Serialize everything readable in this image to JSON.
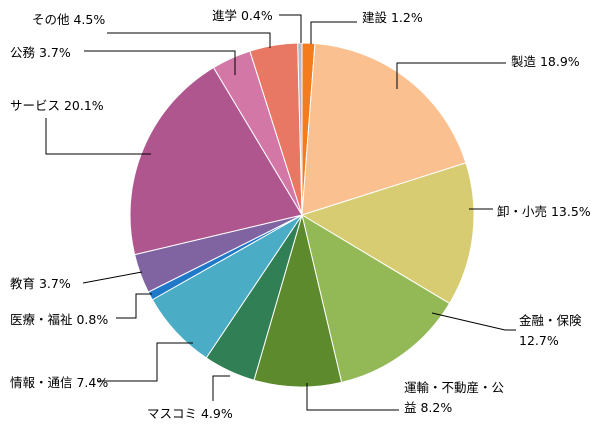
{
  "chart_data": {
    "type": "pie",
    "title": "",
    "start": "top",
    "direction": "clockwise",
    "categories": [
      "建設",
      "製造",
      "卸・小売",
      "金融・保険",
      "運輸・不動産・公益",
      "マスコミ",
      "情報・通信",
      "医療・福祉",
      "教育",
      "サービス",
      "公務",
      "その他",
      "進学"
    ],
    "values": [
      1.2,
      18.9,
      13.5,
      12.7,
      8.2,
      4.9,
      7.4,
      0.8,
      3.7,
      20.1,
      3.7,
      4.5,
      0.4
    ],
    "colors": [
      "#f47c1c",
      "#fac090",
      "#d8cc72",
      "#93b856",
      "#5d8a2c",
      "#318055",
      "#4bacc6",
      "#1f78c8",
      "#8064a2",
      "#b0568f",
      "#d377a6",
      "#e87763",
      "#b5b5c8"
    ],
    "labels": [
      {
        "lines": [
          "建設 1.2%"
        ]
      },
      {
        "lines": [
          "製造 18.9%"
        ]
      },
      {
        "lines": [
          "卸・小売 13.5%"
        ]
      },
      {
        "lines": [
          "金融・保険",
          "12.7%"
        ]
      },
      {
        "lines": [
          "運輸・不動産・公",
          "益 8.2%"
        ]
      },
      {
        "lines": [
          "マスコミ 4.9%"
        ]
      },
      {
        "lines": [
          "情報・通信 7.4%"
        ]
      },
      {
        "lines": [
          "医療・福祉 0.8%"
        ]
      },
      {
        "lines": [
          "教育 3.7%"
        ]
      },
      {
        "lines": [
          "サービス 20.1%"
        ]
      },
      {
        "lines": [
          "公務 3.7%"
        ]
      },
      {
        "lines": [
          "その他 4.5%"
        ]
      },
      {
        "lines": [
          "進学 0.4%"
        ]
      }
    ]
  }
}
